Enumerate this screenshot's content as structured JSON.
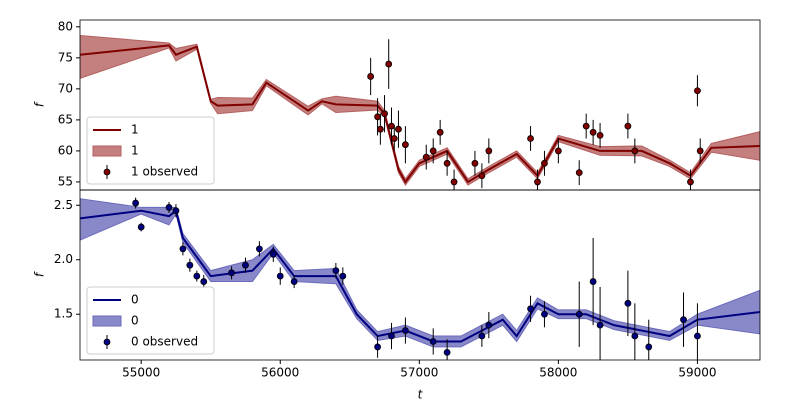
{
  "chart_data": [
    {
      "type": "line",
      "y_label": "f",
      "xlim": [
        54560,
        59450
      ],
      "ylim": [
        53.7,
        81.1
      ],
      "yticks": [
        55,
        60,
        65,
        70,
        75,
        80
      ],
      "series": [
        {
          "type": "line",
          "name": "1",
          "color": "#800000",
          "x": [
            54560,
            55200,
            55250,
            55400,
            55500,
            55550,
            55800,
            55900,
            56200,
            56300,
            56400,
            56700,
            56750,
            56850,
            56900,
            57000,
            57200,
            57350,
            57500,
            57700,
            57850,
            58000,
            58300,
            58600,
            58800,
            58950,
            59100,
            59450
          ],
          "values": [
            75.5,
            77,
            75.5,
            76.8,
            68,
            67.3,
            67.5,
            71,
            66.5,
            68,
            67.5,
            67.3,
            66,
            57,
            55,
            58,
            60,
            55,
            57,
            59.5,
            56,
            62,
            60,
            60,
            58,
            56,
            60.5,
            60.8
          ]
        },
        {
          "type": "band",
          "name": "1",
          "color": "#b5605f",
          "x": [
            54560,
            55200,
            55250,
            55400,
            55500,
            55550,
            55800,
            55900,
            56200,
            56300,
            56400,
            56700,
            56750,
            56850,
            56900,
            57000,
            57200,
            57350,
            57500,
            57700,
            57850,
            58000,
            58300,
            58600,
            58800,
            58950,
            59100,
            59450
          ],
          "lower": [
            71.7,
            76.6,
            74.5,
            76.4,
            67.7,
            66,
            66.5,
            70.5,
            65.8,
            67.6,
            66.2,
            66.6,
            65.5,
            56.5,
            54.5,
            57.5,
            59.5,
            54.5,
            56.5,
            59,
            55.5,
            61.5,
            59.3,
            59.2,
            57.5,
            55.5,
            59.8,
            58.5
          ],
          "upper": [
            78.6,
            77.4,
            76.5,
            77.2,
            68.3,
            68.6,
            68.5,
            71.5,
            67.2,
            68.4,
            68.8,
            68,
            66.5,
            57.5,
            55.5,
            58.5,
            60.5,
            55.5,
            57.5,
            60,
            56.5,
            62.5,
            60.7,
            60.8,
            58.5,
            56.5,
            61.2,
            63.1
          ]
        },
        {
          "type": "errorbar",
          "name": "1 observed",
          "color": "#800000",
          "x": [
            56650,
            56700,
            56720,
            56750,
            56780,
            56800,
            56820,
            56850,
            56900,
            57050,
            57100,
            57150,
            57200,
            57250,
            57400,
            57450,
            57500,
            57800,
            57850,
            57900,
            58000,
            58150,
            58200,
            58250,
            58300,
            58500,
            58550,
            58950,
            59000,
            59020
          ],
          "values": [
            72,
            65.5,
            63.5,
            66,
            74,
            64,
            62,
            63.5,
            61,
            59,
            60,
            63,
            58,
            55,
            58,
            56,
            60,
            62,
            55,
            58,
            60,
            56.5,
            64,
            63,
            62.5,
            64,
            60,
            55,
            69.7,
            60
          ],
          "errors": [
            3,
            3,
            2.5,
            3,
            4,
            3,
            2,
            3,
            3,
            2,
            2,
            2,
            2,
            2,
            2,
            2,
            2,
            2,
            2,
            2,
            2,
            2,
            2,
            2,
            2,
            2,
            2,
            2,
            2.5,
            2
          ]
        }
      ]
    },
    {
      "type": "line",
      "y_label": "f",
      "x_label": "t",
      "xlim": [
        54560,
        59450
      ],
      "ylim": [
        1.08,
        2.64
      ],
      "xticks": [
        55000,
        56000,
        57000,
        58000,
        59000
      ],
      "yticks": [
        1.5,
        {
          "value": 2,
          "label": "2.0"
        },
        2.5
      ],
      "series": [
        {
          "type": "line",
          "name": "0",
          "color": "#000080",
          "x": [
            54560,
            55000,
            55200,
            55250,
            55300,
            55500,
            55800,
            55950,
            56100,
            56400,
            56550,
            56700,
            56900,
            57100,
            57300,
            57450,
            57600,
            57700,
            57850,
            58000,
            58200,
            58400,
            58600,
            58800,
            59000,
            59450
          ],
          "values": [
            2.38,
            2.45,
            2.4,
            2.45,
            2.2,
            1.85,
            1.9,
            2.1,
            1.85,
            1.85,
            1.5,
            1.3,
            1.35,
            1.25,
            1.25,
            1.35,
            1.45,
            1.3,
            1.6,
            1.5,
            1.5,
            1.4,
            1.35,
            1.3,
            1.45,
            1.52
          ]
        },
        {
          "type": "band",
          "name": "0",
          "color": "#6b6bbd",
          "x": [
            54560,
            55000,
            55200,
            55250,
            55300,
            55500,
            55800,
            55950,
            56100,
            56400,
            56550,
            56700,
            56900,
            57100,
            57300,
            57450,
            57600,
            57700,
            57850,
            58000,
            58200,
            58400,
            58600,
            58800,
            59000,
            59450
          ],
          "lower": [
            2.18,
            2.42,
            2.32,
            2.42,
            2.16,
            1.8,
            1.8,
            2.06,
            1.8,
            1.78,
            1.46,
            1.26,
            1.3,
            1.2,
            1.2,
            1.3,
            1.4,
            1.25,
            1.55,
            1.46,
            1.46,
            1.36,
            1.31,
            1.26,
            1.4,
            1.32
          ],
          "upper": [
            2.56,
            2.48,
            2.48,
            2.48,
            2.24,
            1.9,
            2.0,
            2.14,
            1.9,
            1.92,
            1.54,
            1.34,
            1.4,
            1.3,
            1.3,
            1.4,
            1.5,
            1.35,
            1.65,
            1.54,
            1.54,
            1.44,
            1.39,
            1.34,
            1.5,
            1.72
          ]
        },
        {
          "type": "errorbar",
          "name": "0 observed",
          "color": "#000080",
          "x": [
            54960,
            55000,
            55200,
            55250,
            55300,
            55350,
            55400,
            55450,
            55650,
            55750,
            55850,
            55950,
            56000,
            56100,
            56400,
            56450,
            56700,
            56800,
            56900,
            57100,
            57200,
            57450,
            57500,
            57800,
            57900,
            58150,
            58250,
            58300,
            58500,
            58550,
            58650,
            58900,
            59000
          ],
          "values": [
            2.52,
            2.3,
            2.48,
            2.45,
            2.1,
            1.95,
            1.85,
            1.8,
            1.88,
            1.95,
            2.1,
            2.05,
            1.85,
            1.8,
            1.9,
            1.85,
            1.2,
            1.3,
            1.35,
            1.25,
            1.15,
            1.3,
            1.4,
            1.55,
            1.5,
            1.5,
            1.8,
            1.4,
            1.6,
            1.3,
            1.2,
            1.45,
            1.3
          ],
          "errors": [
            0.05,
            0.04,
            0.05,
            0.06,
            0.06,
            0.06,
            0.05,
            0.06,
            0.06,
            0.07,
            0.07,
            0.07,
            0.08,
            0.06,
            0.07,
            0.08,
            0.1,
            0.12,
            0.12,
            0.12,
            0.12,
            0.1,
            0.12,
            0.12,
            0.12,
            0.3,
            0.4,
            0.35,
            0.3,
            0.3,
            0.25,
            0.25,
            0.3
          ]
        }
      ]
    }
  ]
}
